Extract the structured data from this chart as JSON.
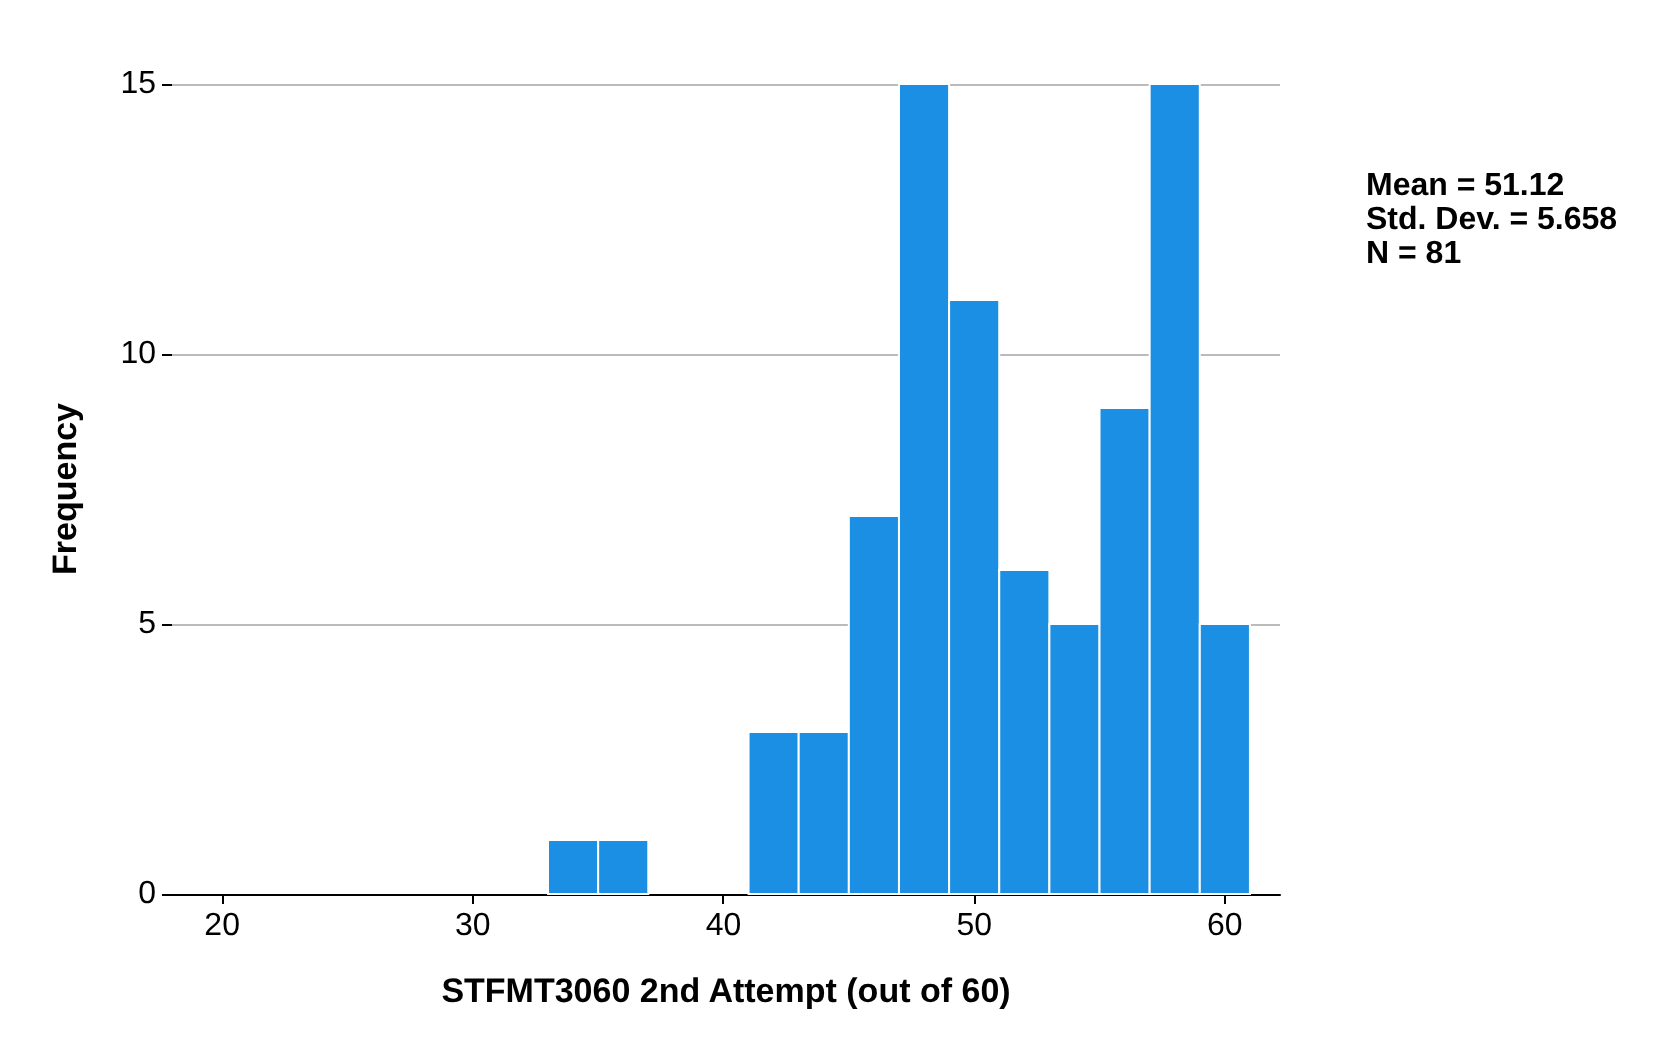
{
  "chart_data": {
    "type": "histogram",
    "xlabel": "STFMT3060 2nd Attempt (out of 60)",
    "ylabel": "Frequency",
    "bins": [
      33,
      35,
      37,
      39,
      41,
      43,
      45,
      47,
      49,
      51,
      53,
      55,
      57,
      59,
      61
    ],
    "values": [
      1,
      1,
      0,
      0,
      3,
      3,
      7,
      15,
      11,
      6,
      5,
      9,
      15,
      5
    ],
    "color": "#1a8fe3",
    "xlim": [
      18,
      62.2
    ],
    "xticks": [
      20,
      30,
      40,
      50,
      60
    ],
    "ylim": [
      0,
      15
    ],
    "yticks": [
      0,
      5,
      10,
      15
    ],
    "grid": "y",
    "annotations": [
      "Mean = 51.12",
      "Std. Dev. = 5.658",
      "N = 81"
    ]
  }
}
